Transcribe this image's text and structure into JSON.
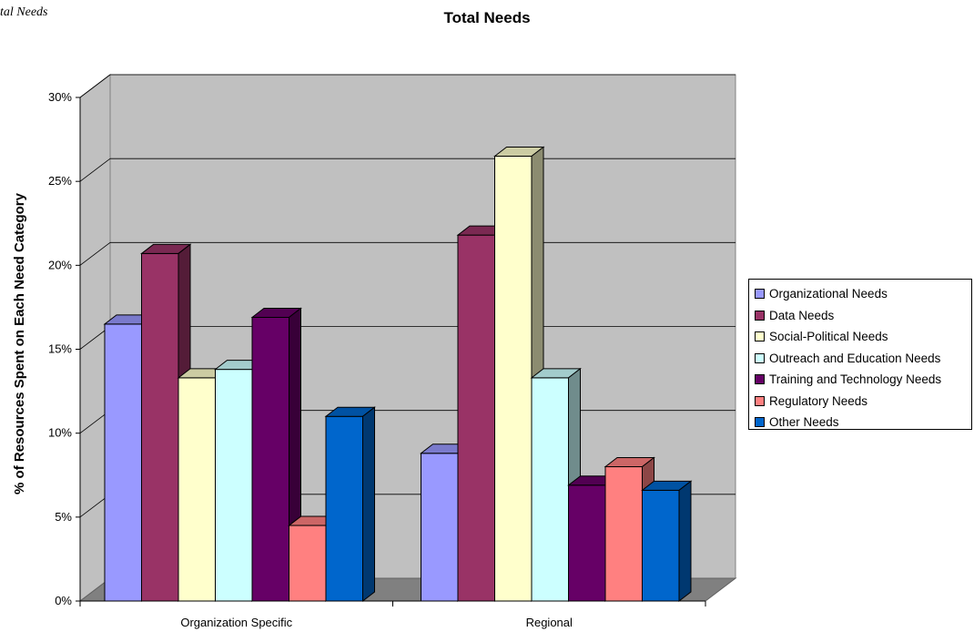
{
  "page": {
    "caption": "tal Needs"
  },
  "chart_data": {
    "type": "bar",
    "title": "Total Needs",
    "ylabel": "% of Resources Spent on Each Need Category",
    "xlabel": "",
    "categories": [
      "Organization Specific",
      "Regional"
    ],
    "ylim": [
      0,
      30
    ],
    "yticks": [
      "0%",
      "5%",
      "10%",
      "15%",
      "20%",
      "25%",
      "30%"
    ],
    "legend_position": "right",
    "grid": true,
    "series": [
      {
        "name": "Organizational Needs",
        "color": "#9999ff",
        "values": [
          16.5,
          8.8
        ]
      },
      {
        "name": "Data Needs",
        "color": "#993366",
        "values": [
          20.7,
          21.8
        ]
      },
      {
        "name": "Social-Political Needs",
        "color": "#ffffcc",
        "values": [
          13.3,
          26.5
        ]
      },
      {
        "name": "Outreach and Education Needs",
        "color": "#ccffff",
        "values": [
          13.8,
          13.3
        ]
      },
      {
        "name": "Training and Technology Needs",
        "color": "#660066",
        "values": [
          16.9,
          6.9
        ]
      },
      {
        "name": "Regulatory Needs",
        "color": "#ff8080",
        "values": [
          4.5,
          8.0
        ]
      },
      {
        "name": "Other Needs",
        "color": "#0066cc",
        "values": [
          11.0,
          6.6
        ]
      }
    ]
  }
}
